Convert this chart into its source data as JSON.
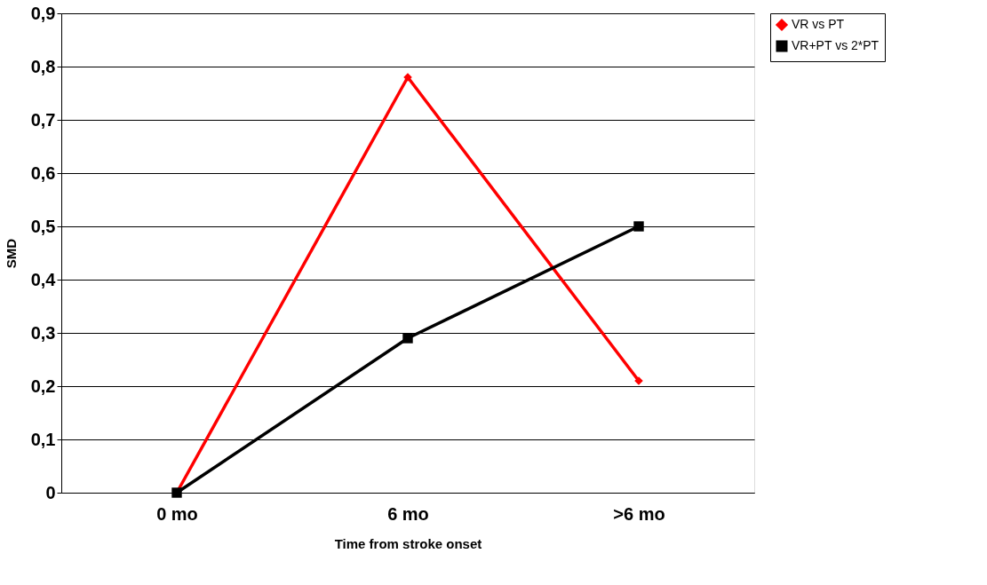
{
  "chart_data": {
    "type": "line",
    "xlabel": "Time from stroke onset",
    "ylabel": "SMD",
    "categories": [
      "0 mo",
      "6 mo",
      ">6 mo"
    ],
    "series": [
      {
        "name": "VR vs PT",
        "color": "#ff0000",
        "values": [
          0,
          0.78,
          0.21
        ],
        "marker": "diamond"
      },
      {
        "name": "VR+PT vs 2*PT",
        "color": "#000000",
        "values": [
          0,
          0.29,
          0.5
        ],
        "marker": "square"
      }
    ],
    "ylim": [
      0,
      0.9
    ],
    "yticks": [
      0,
      {
        "value": 0.1,
        "label": "0,1"
      },
      {
        "value": 0.2,
        "label": "0,2"
      },
      {
        "value": 0.3,
        "label": "0,3"
      },
      {
        "value": 0.4,
        "label": "0,4"
      },
      {
        "value": 0.5,
        "label": "0,5"
      },
      {
        "value": 0.6,
        "label": "0,6"
      },
      {
        "value": 0.7,
        "label": "0,7"
      },
      {
        "value": 0.8,
        "label": "0,8"
      },
      {
        "value": 0.9,
        "label": "0,9"
      }
    ],
    "grid": "y",
    "legend": "right",
    "line_style": "solid"
  }
}
